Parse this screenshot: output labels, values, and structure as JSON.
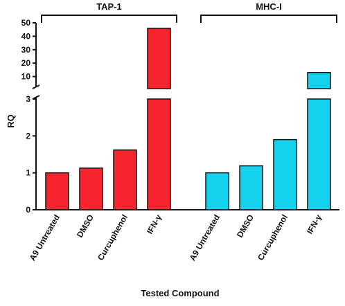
{
  "chart_data": {
    "type": "bar",
    "ylabel": "RQ",
    "xlabel": "Tested Compound",
    "y_axis": {
      "lower_segment": {
        "range": [
          0,
          3
        ],
        "ticks": [
          "0",
          "1",
          "2",
          "3"
        ]
      },
      "upper_segment": {
        "range": [
          0,
          50
        ],
        "ticks": [
          "10",
          "20",
          "30",
          "40",
          "50"
        ]
      },
      "broken": true
    },
    "groups": [
      {
        "name": "TAP-1",
        "color": "#f5242e",
        "categories": [
          "A9 Untreated",
          "DMSO",
          "Curcuphenol",
          "IFN-γ"
        ],
        "values": [
          1.0,
          1.13,
          1.62,
          46
        ]
      },
      {
        "name": "MHC-I",
        "color": "#14d2ee",
        "categories": [
          "A9 Untreated",
          "DMSO",
          "Curcuphenol",
          "IFN-γ"
        ],
        "values": [
          1.0,
          1.19,
          1.9,
          13
        ]
      }
    ],
    "grid": false,
    "legend": "none"
  }
}
